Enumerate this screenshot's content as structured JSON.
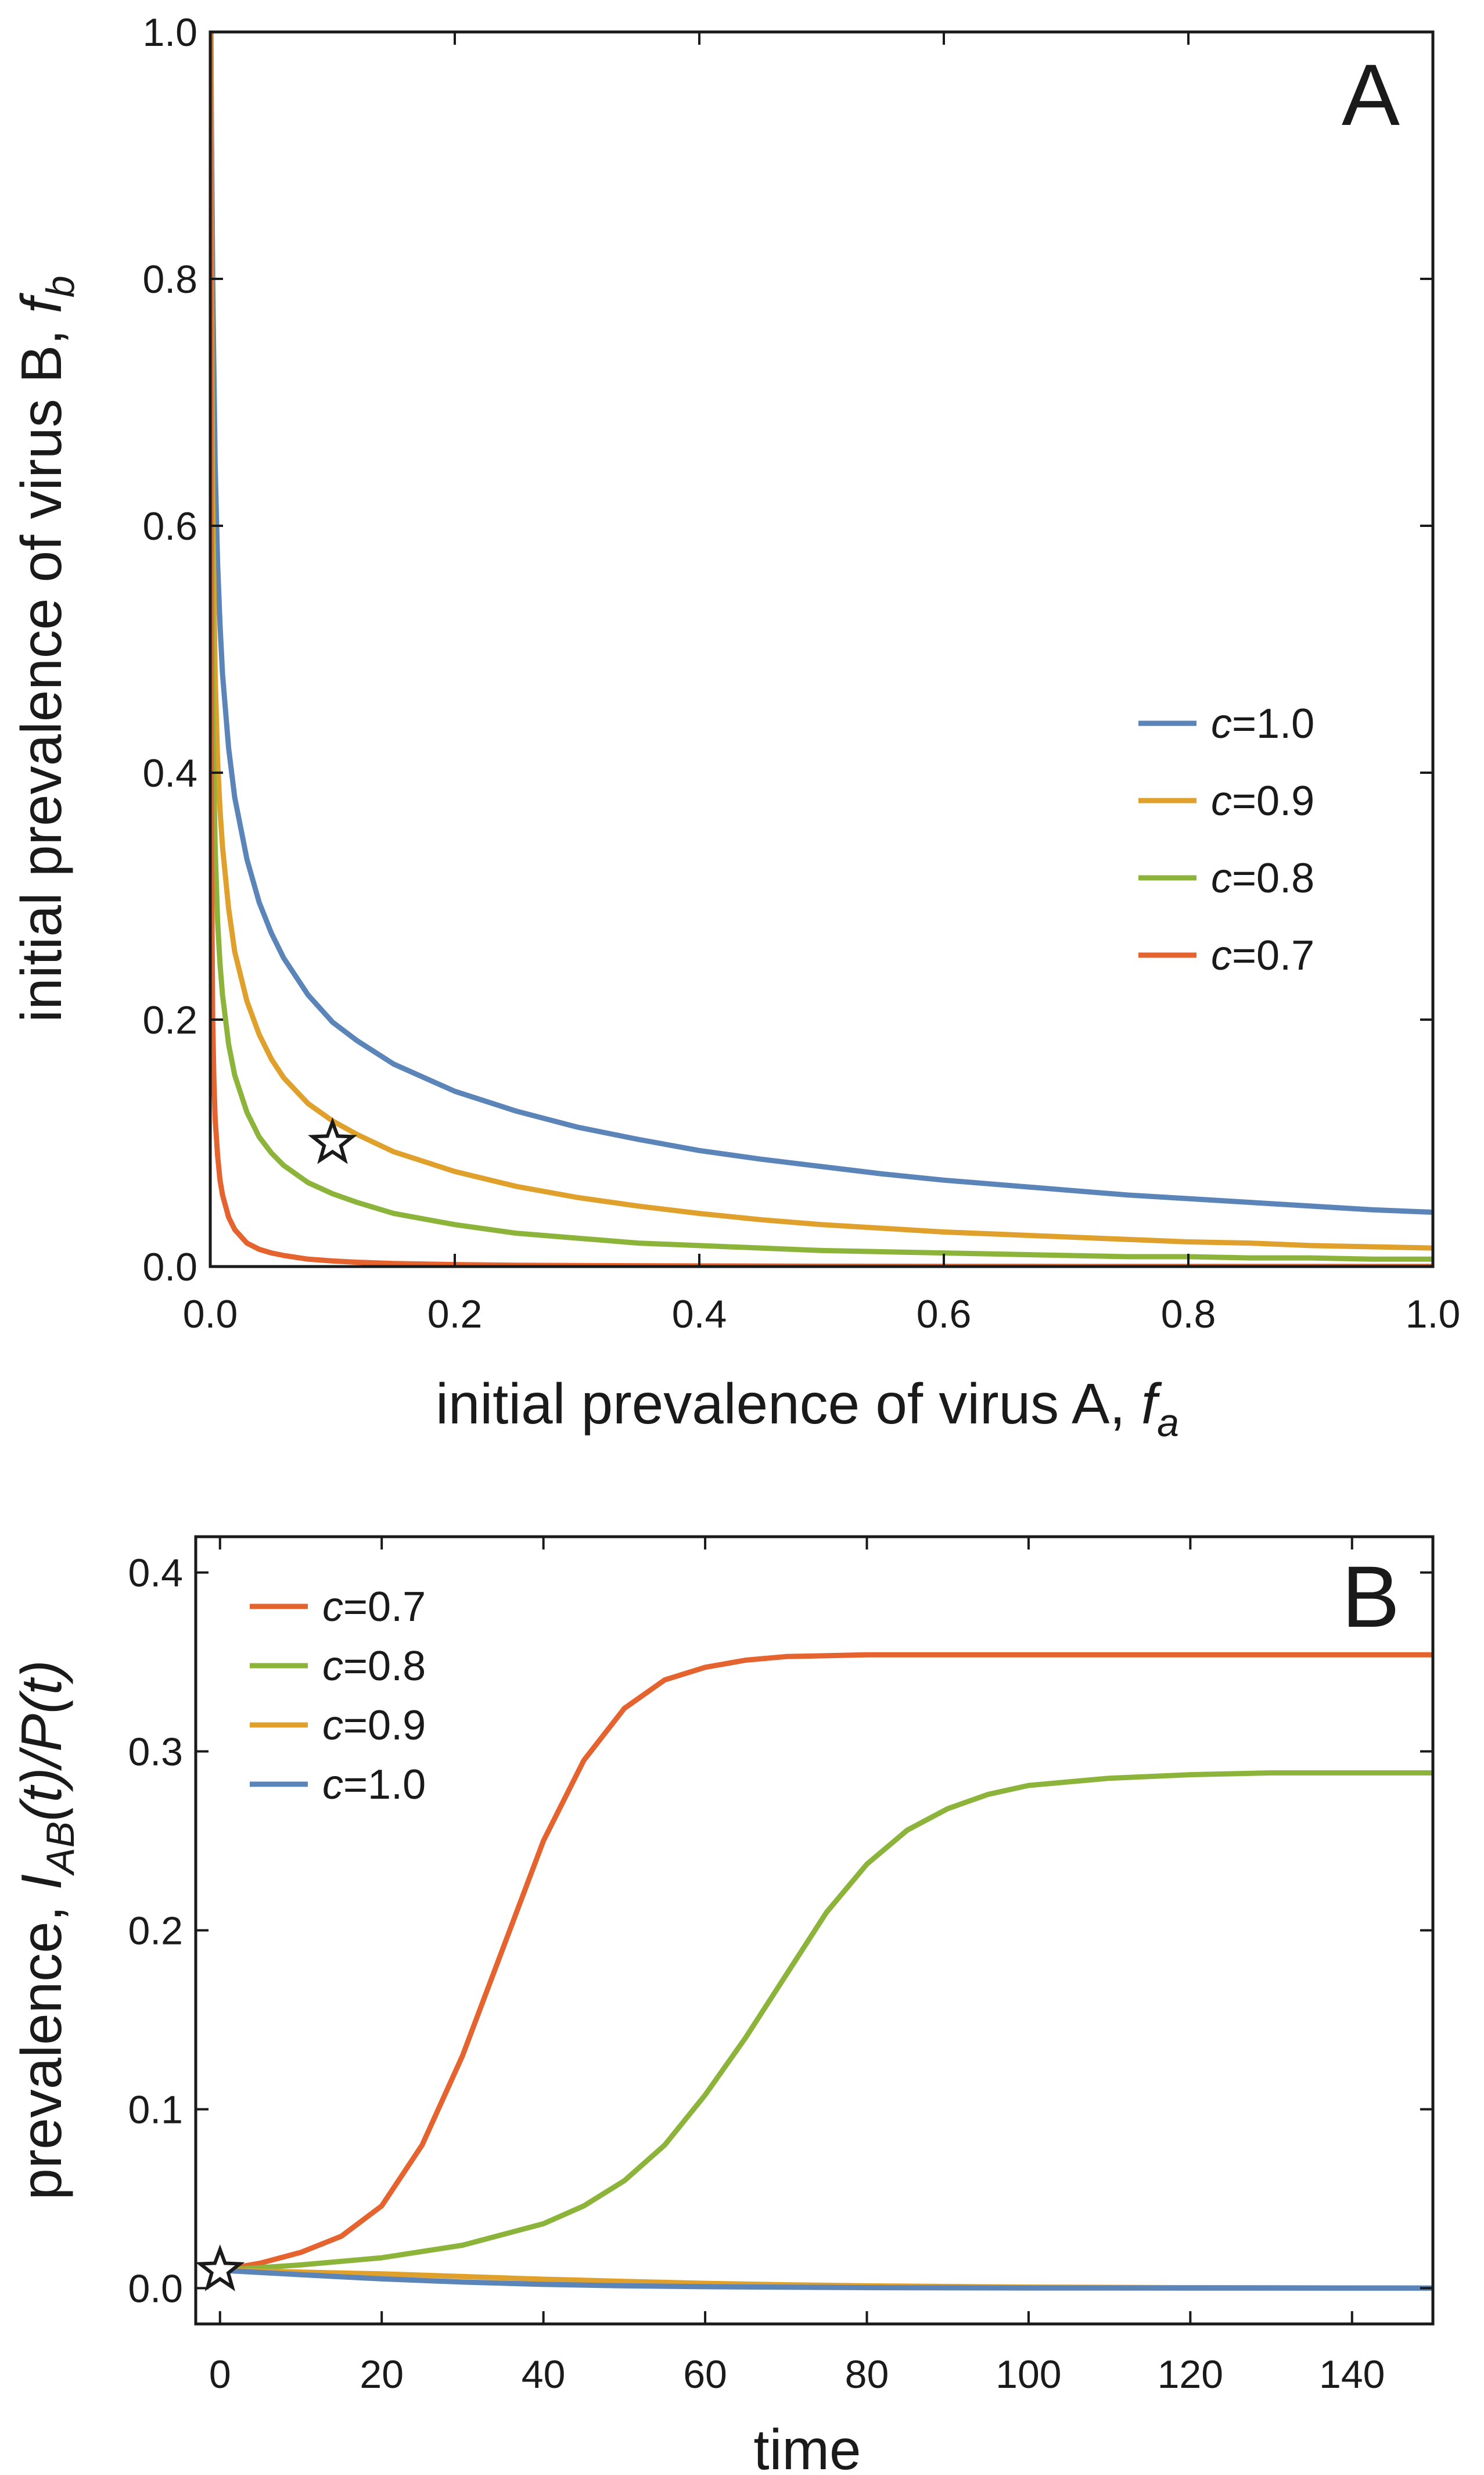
{
  "colors": {
    "c10": "#5b84b8",
    "c09": "#e0a02c",
    "c08": "#8db43a",
    "c07": "#e4632f",
    "axis": "#1a1a1a"
  },
  "chart_data": [
    {
      "panel": "A",
      "type": "line",
      "title": "",
      "panel_label": "A",
      "xlabel": {
        "prefix": "initial prevalence of virus A, ",
        "var": "f",
        "sub": "a"
      },
      "ylabel": {
        "prefix": "initial prevalence of virus B, ",
        "var": "f",
        "sub": "b"
      },
      "xlim": [
        0.0,
        1.0
      ],
      "ylim": [
        0.0,
        1.0
      ],
      "xticks": [
        0.0,
        0.2,
        0.4,
        0.6,
        0.8,
        1.0
      ],
      "yticks": [
        0.0,
        0.2,
        0.4,
        0.6,
        0.8,
        1.0
      ],
      "xtick_labels": [
        "0.0",
        "0.2",
        "0.4",
        "0.6",
        "0.8",
        "1.0"
      ],
      "ytick_labels": [
        "0.0",
        "0.2",
        "0.4",
        "0.6",
        "0.8",
        "1.0"
      ],
      "legend_position": "center-right",
      "series": [
        {
          "name": "c=1.0",
          "var": "c",
          "value_label": "=1.0",
          "color_key": "c10",
          "x": [
            0.0005,
            0.001,
            0.002,
            0.004,
            0.006,
            0.008,
            0.01,
            0.015,
            0.02,
            0.03,
            0.04,
            0.05,
            0.06,
            0.08,
            0.1,
            0.12,
            0.15,
            0.2,
            0.25,
            0.3,
            0.35,
            0.4,
            0.45,
            0.5,
            0.55,
            0.6,
            0.65,
            0.7,
            0.75,
            0.8,
            0.85,
            0.9,
            0.95,
            1.0
          ],
          "y": [
            1.0,
            0.92,
            0.8,
            0.65,
            0.57,
            0.52,
            0.48,
            0.42,
            0.38,
            0.33,
            0.295,
            0.27,
            0.25,
            0.22,
            0.198,
            0.183,
            0.164,
            0.142,
            0.126,
            0.113,
            0.103,
            0.094,
            0.087,
            0.081,
            0.075,
            0.07,
            0.066,
            0.062,
            0.058,
            0.055,
            0.052,
            0.049,
            0.046,
            0.044
          ]
        },
        {
          "name": "c=0.9",
          "var": "c",
          "value_label": "=0.9",
          "color_key": "c09",
          "x": [
            0.0005,
            0.001,
            0.002,
            0.004,
            0.006,
            0.008,
            0.01,
            0.015,
            0.02,
            0.03,
            0.04,
            0.05,
            0.06,
            0.08,
            0.1,
            0.12,
            0.15,
            0.2,
            0.25,
            0.3,
            0.35,
            0.4,
            0.45,
            0.5,
            0.55,
            0.6,
            0.65,
            0.7,
            0.75,
            0.8,
            0.85,
            0.9,
            0.95,
            1.0
          ],
          "y": [
            1.0,
            0.8,
            0.62,
            0.48,
            0.41,
            0.37,
            0.34,
            0.29,
            0.255,
            0.215,
            0.188,
            0.168,
            0.153,
            0.132,
            0.118,
            0.107,
            0.093,
            0.077,
            0.065,
            0.056,
            0.049,
            0.043,
            0.038,
            0.034,
            0.031,
            0.028,
            0.026,
            0.024,
            0.022,
            0.02,
            0.019,
            0.017,
            0.016,
            0.015
          ]
        },
        {
          "name": "c=0.8",
          "var": "c",
          "value_label": "=0.8",
          "color_key": "c08",
          "x": [
            0.0005,
            0.001,
            0.002,
            0.004,
            0.006,
            0.008,
            0.01,
            0.015,
            0.02,
            0.03,
            0.04,
            0.05,
            0.06,
            0.08,
            0.1,
            0.12,
            0.15,
            0.2,
            0.25,
            0.3,
            0.35,
            0.4,
            0.45,
            0.5,
            0.55,
            0.6,
            0.65,
            0.7,
            0.75,
            0.8,
            0.85,
            0.9,
            0.95,
            1.0
          ],
          "y": [
            1.0,
            0.62,
            0.45,
            0.34,
            0.28,
            0.245,
            0.22,
            0.18,
            0.155,
            0.125,
            0.105,
            0.092,
            0.082,
            0.068,
            0.059,
            0.052,
            0.043,
            0.034,
            0.027,
            0.023,
            0.019,
            0.017,
            0.015,
            0.013,
            0.012,
            0.011,
            0.01,
            0.009,
            0.008,
            0.008,
            0.007,
            0.007,
            0.006,
            0.006
          ]
        },
        {
          "name": "c=0.7",
          "var": "c",
          "value_label": "=0.7",
          "color_key": "c07",
          "x": [
            0.0,
            0.0005,
            0.001,
            0.002,
            0.003,
            0.004,
            0.006,
            0.008,
            0.01,
            0.015,
            0.02,
            0.03,
            0.04,
            0.05,
            0.06,
            0.08,
            0.1,
            0.12,
            0.15,
            0.2,
            0.25,
            0.3,
            0.4,
            0.5,
            0.6,
            0.7,
            0.8,
            0.9,
            1.0
          ],
          "y": [
            1.0,
            0.55,
            0.33,
            0.2,
            0.15,
            0.12,
            0.09,
            0.07,
            0.058,
            0.04,
            0.03,
            0.019,
            0.014,
            0.011,
            0.009,
            0.006,
            0.0045,
            0.0035,
            0.0025,
            0.0016,
            0.0011,
            0.0008,
            0.0005,
            0.0003,
            0.0002,
            0.00015,
            0.0001,
            0.0001,
            0.0001
          ]
        }
      ],
      "annotations": [
        {
          "type": "star",
          "name": "initial-condition-star",
          "x": 0.1,
          "y": 0.1
        }
      ]
    },
    {
      "panel": "B",
      "type": "line",
      "title": "",
      "panel_label": "B",
      "xlabel": {
        "text": "time"
      },
      "ylabel": {
        "prefix": "prevalence, ",
        "formula": "I_AB(t)/P(t)"
      },
      "xlim": [
        -3,
        150
      ],
      "ylim": [
        -0.02,
        0.42
      ],
      "xticks": [
        0,
        20,
        40,
        60,
        80,
        100,
        120,
        140
      ],
      "yticks": [
        0.0,
        0.1,
        0.2,
        0.3,
        0.4
      ],
      "xtick_labels": [
        "0",
        "20",
        "40",
        "60",
        "80",
        "100",
        "120",
        "140"
      ],
      "ytick_labels": [
        "0.0",
        "0.1",
        "0.2",
        "0.3",
        "0.4"
      ],
      "legend_position": "top-left",
      "series": [
        {
          "name": "c=0.7",
          "var": "c",
          "value_label": "=0.7",
          "color_key": "c07",
          "x": [
            0,
            5,
            10,
            15,
            20,
            25,
            30,
            35,
            40,
            45,
            50,
            55,
            60,
            65,
            70,
            80,
            90,
            100,
            120,
            150
          ],
          "y": [
            0.01,
            0.014,
            0.02,
            0.029,
            0.046,
            0.08,
            0.13,
            0.19,
            0.25,
            0.295,
            0.324,
            0.34,
            0.347,
            0.351,
            0.353,
            0.354,
            0.354,
            0.354,
            0.354,
            0.354
          ]
        },
        {
          "name": "c=0.8",
          "var": "c",
          "value_label": "=0.8",
          "color_key": "c08",
          "x": [
            0,
            10,
            20,
            30,
            40,
            45,
            50,
            55,
            60,
            65,
            70,
            75,
            80,
            85,
            90,
            95,
            100,
            110,
            120,
            130,
            150
          ],
          "y": [
            0.01,
            0.013,
            0.017,
            0.024,
            0.036,
            0.046,
            0.06,
            0.08,
            0.108,
            0.14,
            0.175,
            0.21,
            0.237,
            0.256,
            0.268,
            0.276,
            0.281,
            0.285,
            0.287,
            0.288,
            0.288
          ]
        },
        {
          "name": "c=0.9",
          "var": "c",
          "value_label": "=0.9",
          "color_key": "c09",
          "x": [
            0,
            10,
            20,
            30,
            40,
            50,
            60,
            70,
            80,
            100,
            120,
            150
          ],
          "y": [
            0.01,
            0.009,
            0.008,
            0.0065,
            0.005,
            0.0038,
            0.0027,
            0.0019,
            0.0013,
            0.0006,
            0.0003,
            0.0001
          ]
        },
        {
          "name": "c=1.0",
          "var": "c",
          "value_label": "=1.0",
          "color_key": "c10",
          "x": [
            0,
            10,
            20,
            30,
            40,
            50,
            60,
            80,
            100,
            150
          ],
          "y": [
            0.01,
            0.0075,
            0.0052,
            0.0034,
            0.0021,
            0.0013,
            0.0008,
            0.0003,
            0.0001,
            0.0
          ]
        }
      ],
      "annotations": [
        {
          "type": "star",
          "name": "initial-condition-star",
          "x": 0,
          "y": 0.01
        }
      ]
    }
  ]
}
